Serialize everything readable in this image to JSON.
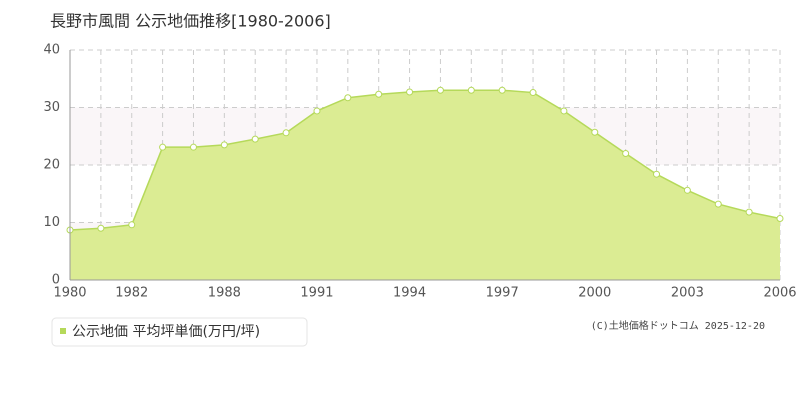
{
  "chart_data": {
    "type": "area",
    "title": "長野市風間 公示地価推移[1980-2006]",
    "categories": [
      "1980",
      null,
      "1982",
      null,
      null,
      "1988",
      null,
      null,
      "1991",
      null,
      null,
      "1994",
      null,
      null,
      "1997",
      null,
      null,
      "2000",
      null,
      null,
      "2003",
      null,
      null,
      "2006"
    ],
    "series": [
      {
        "name": "公示地価 平均坪単価(万円/坪)",
        "color": "#b5d95a",
        "values": [
          8.7,
          9.0,
          9.6,
          23.1,
          23.1,
          23.5,
          24.5,
          25.6,
          29.4,
          31.7,
          32.3,
          32.7,
          33.0,
          33.0,
          33.0,
          32.6,
          29.4,
          25.7,
          22.0,
          18.4,
          15.6,
          13.2,
          11.8,
          10.7
        ]
      }
    ],
    "ylim": [
      0,
      40
    ],
    "yticks": [
      0,
      10,
      20,
      30,
      40
    ],
    "grid": true,
    "credit": "(C)土地価格ドットコム 2025-12-20"
  }
}
